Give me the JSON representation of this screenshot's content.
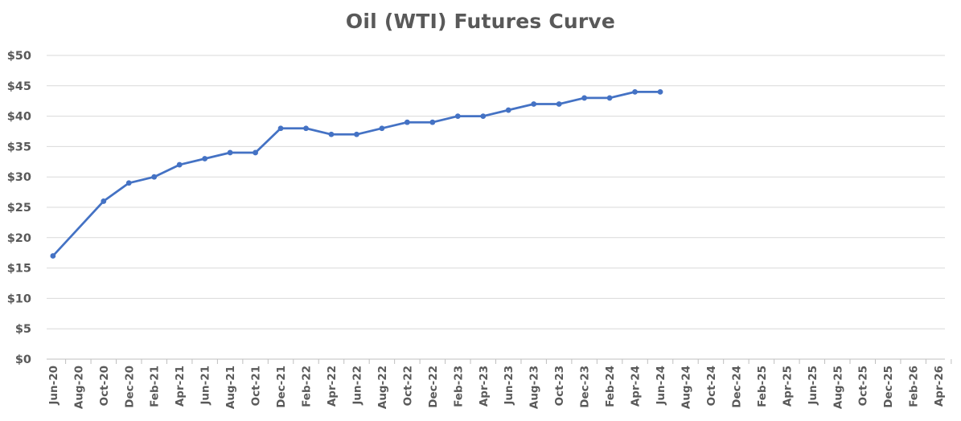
{
  "chart_data": {
    "type": "line",
    "title": "Oil (WTI) Futures Curve",
    "xlabel": "",
    "ylabel": "",
    "ylim": [
      0,
      50
    ],
    "y_ticks": [
      "$0",
      "$5",
      "$10",
      "$15",
      "$20",
      "$25",
      "$30",
      "$35",
      "$40",
      "$45",
      "$50"
    ],
    "grid": "horizontal",
    "legend": "none",
    "categories": [
      "Jun-20",
      "Aug-20",
      "Oct-20",
      "Dec-20",
      "Feb-21",
      "Apr-21",
      "Jun-21",
      "Aug-21",
      "Oct-21",
      "Dec-21",
      "Feb-22",
      "Apr-22",
      "Jun-22",
      "Aug-22",
      "Oct-22",
      "Dec-22",
      "Feb-23",
      "Apr-23",
      "Jun-23",
      "Aug-23",
      "Oct-23",
      "Dec-23",
      "Feb-24",
      "Apr-24",
      "Jun-24",
      "Aug-24",
      "Oct-24",
      "Dec-24",
      "Feb-25",
      "Apr-25",
      "Jun-25",
      "Aug-25",
      "Oct-25",
      "Dec-25",
      "Feb-26",
      "Apr-26"
    ],
    "points": [
      {
        "x": "Jun-20",
        "y": 17
      },
      {
        "x": "Oct-20",
        "y": 26
      },
      {
        "x": "Dec-20",
        "y": 29
      },
      {
        "x": "Feb-21",
        "y": 30
      },
      {
        "x": "Apr-21",
        "y": 32
      },
      {
        "x": "Jun-21",
        "y": 33
      },
      {
        "x": "Aug-21",
        "y": 34
      },
      {
        "x": "Oct-21",
        "y": 34
      },
      {
        "x": "Dec-21",
        "y": 38
      },
      {
        "x": "Feb-22",
        "y": 38
      },
      {
        "x": "Apr-22",
        "y": 37
      },
      {
        "x": "Jun-22",
        "y": 37
      },
      {
        "x": "Aug-22",
        "y": 38
      },
      {
        "x": "Oct-22",
        "y": 39
      },
      {
        "x": "Dec-22",
        "y": 39
      },
      {
        "x": "Feb-23",
        "y": 40
      },
      {
        "x": "Apr-23",
        "y": 40
      },
      {
        "x": "Jun-23",
        "y": 41
      },
      {
        "x": "Aug-23",
        "y": 42
      },
      {
        "x": "Oct-23",
        "y": 42
      },
      {
        "x": "Dec-23",
        "y": 43
      },
      {
        "x": "Feb-24",
        "y": 43
      },
      {
        "x": "Apr-24",
        "y": 44
      },
      {
        "x": "Jun-24",
        "y": 44
      }
    ],
    "colors": {
      "line": "#4472C4",
      "grid": "#D9D9D9",
      "axis": "#BFBFBF",
      "text": "#595959"
    }
  }
}
